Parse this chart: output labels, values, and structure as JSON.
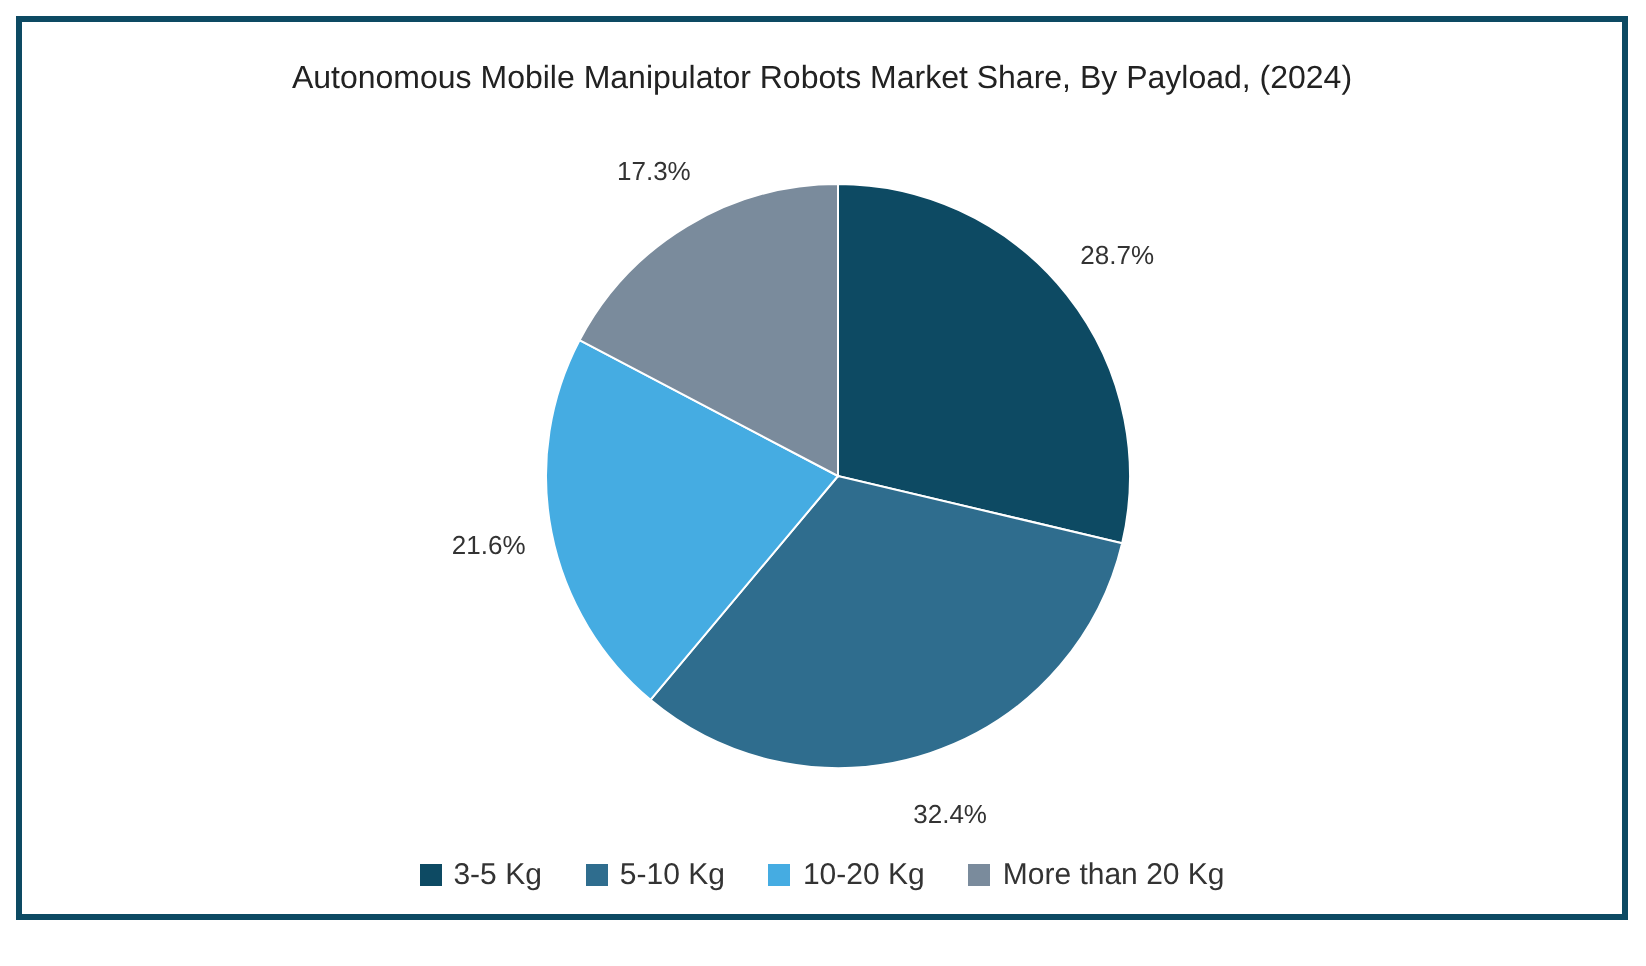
{
  "chart_data": {
    "type": "pie",
    "title": "Autonomous Mobile Manipulator Robots Market Share, By Payload, (2024)",
    "categories": [
      "3-5 Kg",
      "5-10 Kg",
      "10-20 Kg",
      "More than 20 Kg"
    ],
    "values": [
      28.7,
      32.4,
      21.6,
      17.3
    ],
    "value_labels": [
      "28.7%",
      "32.4%",
      "21.6%",
      "17.3%"
    ],
    "colors": [
      "#0d4a63",
      "#2f6d8e",
      "#45ace2",
      "#7a8b9c"
    ],
    "legend": "bottom"
  }
}
